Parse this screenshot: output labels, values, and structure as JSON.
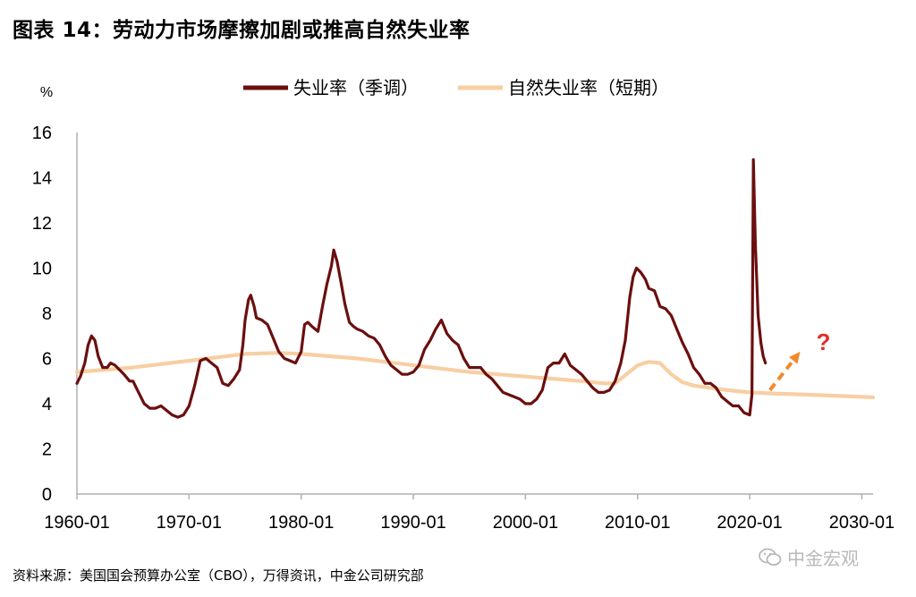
{
  "title": "图表 14：劳动力市场摩擦加剧或推高自然失业率",
  "source": "资料来源：美国国会预算办公室（CBO），万得资讯，中金公司研究部",
  "watermark": "中金宏观",
  "colors": {
    "unemployment": "#6b0f0f",
    "natural": "#f7cfa3",
    "arrow": "#f08a2e",
    "question": "#e0302a"
  },
  "chart_data": {
    "type": "line",
    "yunit": "%",
    "ylim": [
      0,
      16
    ],
    "yticks": [
      0,
      2,
      4,
      6,
      8,
      10,
      12,
      14,
      16
    ],
    "xlim": [
      1960.0,
      2031.0
    ],
    "xticks": [
      {
        "x": 1960.0,
        "label": "1960-01"
      },
      {
        "x": 1970.0,
        "label": "1970-01"
      },
      {
        "x": 1980.0,
        "label": "1980-01"
      },
      {
        "x": 1990.0,
        "label": "1990-01"
      },
      {
        "x": 2000.0,
        "label": "2000-01"
      },
      {
        "x": 2010.0,
        "label": "2010-01"
      },
      {
        "x": 2020.0,
        "label": "2020-01"
      },
      {
        "x": 2030.0,
        "label": "2030-01"
      }
    ],
    "legend_position": "top",
    "annotation": {
      "text": "?",
      "arrow_from": [
        2021.8,
        4.6
      ],
      "arrow_to": [
        2024.5,
        6.3
      ]
    },
    "series": [
      {
        "name": "失业率（季调）",
        "color": "#6b0f0f",
        "points": [
          [
            1960.0,
            4.9
          ],
          [
            1960.3,
            5.2
          ],
          [
            1960.7,
            5.8
          ],
          [
            1961.0,
            6.6
          ],
          [
            1961.3,
            7.0
          ],
          [
            1961.6,
            6.8
          ],
          [
            1961.9,
            6.1
          ],
          [
            1962.3,
            5.6
          ],
          [
            1962.7,
            5.6
          ],
          [
            1963.0,
            5.8
          ],
          [
            1963.4,
            5.7
          ],
          [
            1963.8,
            5.5
          ],
          [
            1964.2,
            5.3
          ],
          [
            1964.7,
            5.0
          ],
          [
            1965.0,
            5.0
          ],
          [
            1965.5,
            4.5
          ],
          [
            1966.0,
            4.0
          ],
          [
            1966.5,
            3.8
          ],
          [
            1967.0,
            3.8
          ],
          [
            1967.5,
            3.9
          ],
          [
            1968.0,
            3.7
          ],
          [
            1968.5,
            3.5
          ],
          [
            1969.0,
            3.4
          ],
          [
            1969.5,
            3.5
          ],
          [
            1970.0,
            3.9
          ],
          [
            1970.5,
            4.8
          ],
          [
            1971.0,
            5.9
          ],
          [
            1971.5,
            6.0
          ],
          [
            1972.0,
            5.8
          ],
          [
            1972.5,
            5.6
          ],
          [
            1973.0,
            4.9
          ],
          [
            1973.5,
            4.8
          ],
          [
            1974.0,
            5.1
          ],
          [
            1974.5,
            5.5
          ],
          [
            1974.8,
            6.6
          ],
          [
            1975.0,
            7.7
          ],
          [
            1975.3,
            8.6
          ],
          [
            1975.5,
            8.8
          ],
          [
            1975.8,
            8.3
          ],
          [
            1976.0,
            7.8
          ],
          [
            1976.5,
            7.7
          ],
          [
            1977.0,
            7.5
          ],
          [
            1977.5,
            6.9
          ],
          [
            1978.0,
            6.3
          ],
          [
            1978.5,
            6.0
          ],
          [
            1979.0,
            5.9
          ],
          [
            1979.5,
            5.8
          ],
          [
            1980.0,
            6.3
          ],
          [
            1980.3,
            7.5
          ],
          [
            1980.6,
            7.6
          ],
          [
            1981.0,
            7.4
          ],
          [
            1981.5,
            7.2
          ],
          [
            1981.9,
            8.3
          ],
          [
            1982.3,
            9.3
          ],
          [
            1982.7,
            10.1
          ],
          [
            1982.9,
            10.8
          ],
          [
            1983.2,
            10.3
          ],
          [
            1983.5,
            9.5
          ],
          [
            1983.9,
            8.4
          ],
          [
            1984.3,
            7.6
          ],
          [
            1984.7,
            7.4
          ],
          [
            1985.0,
            7.3
          ],
          [
            1985.5,
            7.2
          ],
          [
            1986.0,
            7.0
          ],
          [
            1986.5,
            6.9
          ],
          [
            1987.0,
            6.6
          ],
          [
            1987.5,
            6.1
          ],
          [
            1988.0,
            5.7
          ],
          [
            1988.5,
            5.5
          ],
          [
            1989.0,
            5.3
          ],
          [
            1989.5,
            5.3
          ],
          [
            1990.0,
            5.4
          ],
          [
            1990.5,
            5.7
          ],
          [
            1991.0,
            6.4
          ],
          [
            1991.5,
            6.8
          ],
          [
            1992.0,
            7.3
          ],
          [
            1992.5,
            7.7
          ],
          [
            1993.0,
            7.1
          ],
          [
            1993.5,
            6.8
          ],
          [
            1994.0,
            6.6
          ],
          [
            1994.5,
            6.0
          ],
          [
            1995.0,
            5.6
          ],
          [
            1995.5,
            5.6
          ],
          [
            1996.0,
            5.6
          ],
          [
            1996.5,
            5.3
          ],
          [
            1997.0,
            5.1
          ],
          [
            1997.5,
            4.8
          ],
          [
            1998.0,
            4.5
          ],
          [
            1998.5,
            4.4
          ],
          [
            1999.0,
            4.3
          ],
          [
            1999.5,
            4.2
          ],
          [
            2000.0,
            4.0
          ],
          [
            2000.5,
            4.0
          ],
          [
            2001.0,
            4.2
          ],
          [
            2001.5,
            4.6
          ],
          [
            2002.0,
            5.6
          ],
          [
            2002.5,
            5.8
          ],
          [
            2003.0,
            5.8
          ],
          [
            2003.5,
            6.2
          ],
          [
            2004.0,
            5.7
          ],
          [
            2004.5,
            5.5
          ],
          [
            2005.0,
            5.3
          ],
          [
            2005.5,
            5.0
          ],
          [
            2006.0,
            4.7
          ],
          [
            2006.5,
            4.5
          ],
          [
            2007.0,
            4.5
          ],
          [
            2007.5,
            4.6
          ],
          [
            2008.0,
            5.0
          ],
          [
            2008.5,
            5.8
          ],
          [
            2008.9,
            6.8
          ],
          [
            2009.3,
            8.7
          ],
          [
            2009.6,
            9.6
          ],
          [
            2009.9,
            10.0
          ],
          [
            2010.3,
            9.8
          ],
          [
            2010.7,
            9.5
          ],
          [
            2011.0,
            9.1
          ],
          [
            2011.5,
            9.0
          ],
          [
            2012.0,
            8.3
          ],
          [
            2012.5,
            8.2
          ],
          [
            2013.0,
            7.9
          ],
          [
            2013.5,
            7.3
          ],
          [
            2014.0,
            6.7
          ],
          [
            2014.5,
            6.2
          ],
          [
            2015.0,
            5.6
          ],
          [
            2015.5,
            5.3
          ],
          [
            2016.0,
            4.9
          ],
          [
            2016.5,
            4.9
          ],
          [
            2017.0,
            4.7
          ],
          [
            2017.5,
            4.3
          ],
          [
            2018.0,
            4.1
          ],
          [
            2018.5,
            3.9
          ],
          [
            2019.0,
            3.9
          ],
          [
            2019.5,
            3.6
          ],
          [
            2020.0,
            3.5
          ],
          [
            2020.2,
            4.4
          ],
          [
            2020.33,
            14.8
          ],
          [
            2020.5,
            11.1
          ],
          [
            2020.75,
            7.9
          ],
          [
            2021.0,
            6.7
          ],
          [
            2021.2,
            6.1
          ],
          [
            2021.4,
            5.8
          ]
        ]
      },
      {
        "name": "自然失业率（短期）",
        "color": "#f7cfa3",
        "points": [
          [
            1960.0,
            5.4
          ],
          [
            1965.0,
            5.6
          ],
          [
            1970.0,
            5.9
          ],
          [
            1975.0,
            6.2
          ],
          [
            1978.0,
            6.25
          ],
          [
            1980.0,
            6.2
          ],
          [
            1985.0,
            6.0
          ],
          [
            1990.0,
            5.7
          ],
          [
            1995.0,
            5.4
          ],
          [
            2000.0,
            5.2
          ],
          [
            2005.0,
            5.0
          ],
          [
            2007.0,
            4.9
          ],
          [
            2008.0,
            4.9
          ],
          [
            2009.0,
            5.3
          ],
          [
            2010.0,
            5.7
          ],
          [
            2011.0,
            5.85
          ],
          [
            2012.0,
            5.8
          ],
          [
            2013.0,
            5.3
          ],
          [
            2014.0,
            4.95
          ],
          [
            2015.0,
            4.8
          ],
          [
            2018.0,
            4.6
          ],
          [
            2020.0,
            4.5
          ],
          [
            2022.0,
            4.45
          ],
          [
            2025.0,
            4.4
          ],
          [
            2030.0,
            4.3
          ],
          [
            2031.0,
            4.28
          ]
        ]
      }
    ]
  }
}
